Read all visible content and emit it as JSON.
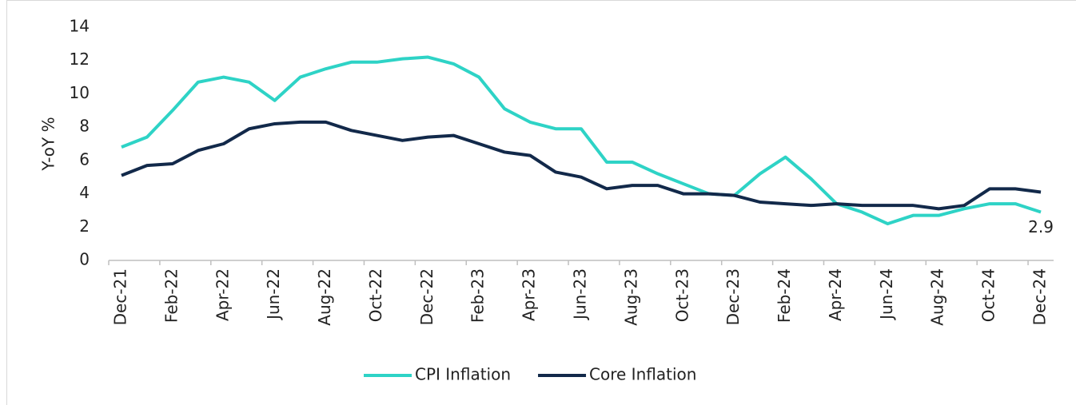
{
  "chart_data": {
    "type": "line",
    "y_label": "Y-oY %",
    "categories": [
      "Dec-21",
      null,
      "Feb-22",
      null,
      "Apr-22",
      null,
      "Jun-22",
      null,
      "Aug-22",
      null,
      "Oct-22",
      null,
      "Dec-22",
      null,
      "Feb-23",
      null,
      "Apr-23",
      null,
      "Jun-23",
      null,
      "Aug-23",
      null,
      "Oct-23",
      null,
      "Dec-23",
      null,
      "Feb-24",
      null,
      "Apr-24",
      null,
      "Jun-24",
      null,
      "Aug-24",
      null,
      "Oct-24",
      null,
      "Dec-24"
    ],
    "series": [
      {
        "name": "CPI Inflation",
        "color": "#2ed3c6",
        "values": [
          6.8,
          7.4,
          9.0,
          10.7,
          11.0,
          10.7,
          9.6,
          11.0,
          11.5,
          11.9,
          11.9,
          12.1,
          12.2,
          11.8,
          11.0,
          9.1,
          8.3,
          7.9,
          7.9,
          5.9,
          5.9,
          5.2,
          4.6,
          4.0,
          3.9,
          5.2,
          6.2,
          4.9,
          3.4,
          2.9,
          2.2,
          2.7,
          2.7,
          3.1,
          3.4,
          3.4,
          2.9
        ],
        "value_labels": [
          null,
          null,
          null,
          null,
          null,
          null,
          null,
          null,
          null,
          null,
          null,
          null,
          null,
          null,
          null,
          null,
          null,
          null,
          null,
          null,
          null,
          null,
          null,
          null,
          null,
          null,
          null,
          null,
          null,
          null,
          null,
          null,
          null,
          null,
          null,
          null,
          "2.9"
        ]
      },
      {
        "name": "Core Inflation",
        "color": "#12294a",
        "values": [
          5.1,
          5.7,
          5.8,
          6.6,
          7.0,
          7.9,
          8.2,
          8.3,
          8.3,
          7.8,
          7.5,
          7.2,
          7.4,
          7.5,
          7.0,
          6.5,
          6.3,
          5.3,
          5.0,
          4.3,
          4.5,
          4.5,
          4.0,
          4.0,
          3.9,
          3.5,
          3.4,
          3.3,
          3.4,
          3.3,
          3.3,
          3.3,
          3.1,
          3.3,
          4.3,
          4.3,
          4.1
        ]
      }
    ],
    "ylim": [
      0,
      14
    ],
    "yticks": [
      0,
      2,
      4,
      6,
      8,
      10,
      12,
      14
    ],
    "grid": false,
    "legend": "bottom"
  }
}
